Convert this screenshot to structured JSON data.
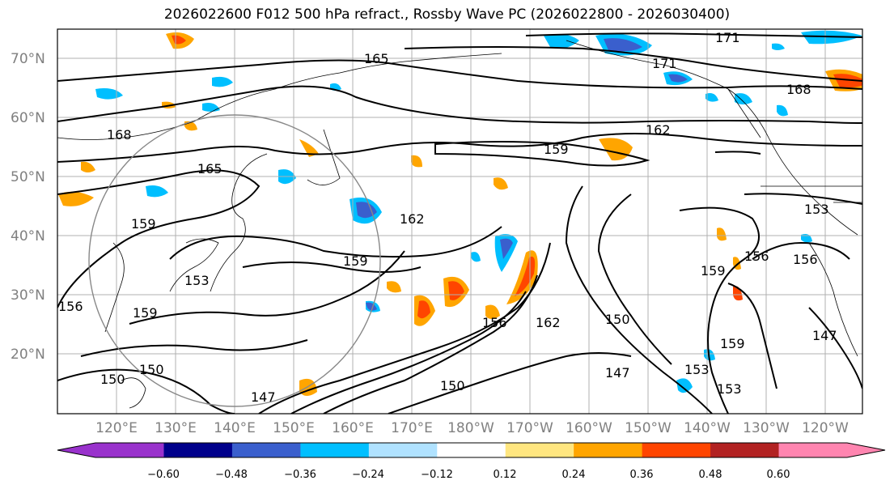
{
  "title": "2026022600 F012 500 hPa refract., Rossby Wave PC (2026022800 - 2026030400)",
  "lat_labels": [
    "70°N",
    "60°N",
    "50°N",
    "40°N",
    "30°N",
    "20°N"
  ],
  "lon_labels": [
    "120°E",
    "130°E",
    "140°E",
    "150°E",
    "160°E",
    "170°E",
    "180°W",
    "170°W",
    "160°W",
    "150°W",
    "140°W",
    "130°W",
    "120°W"
  ],
  "contour_labels": [
    "171",
    "171",
    "168",
    "168",
    "165",
    "165",
    "162",
    "162",
    "162",
    "159",
    "159",
    "159",
    "159",
    "159",
    "159",
    "156",
    "156",
    "156",
    "156",
    "153",
    "153",
    "153",
    "153",
    "150",
    "150",
    "150",
    "150",
    "147",
    "147",
    "147"
  ],
  "colorbar": {
    "ticks": [
      "−0.60",
      "−0.48",
      "−0.36",
      "−0.24",
      "−0.12",
      "0.12",
      "0.24",
      "0.36",
      "0.48",
      "0.60"
    ],
    "colors": [
      "#9932cc",
      "#00008b",
      "#3a5fcd",
      "#00bfff",
      "#b0e2ff",
      "#ffffff",
      "#ffe680",
      "#ffa500",
      "#ff4500",
      "#b22222",
      "#ff85b0"
    ]
  }
}
